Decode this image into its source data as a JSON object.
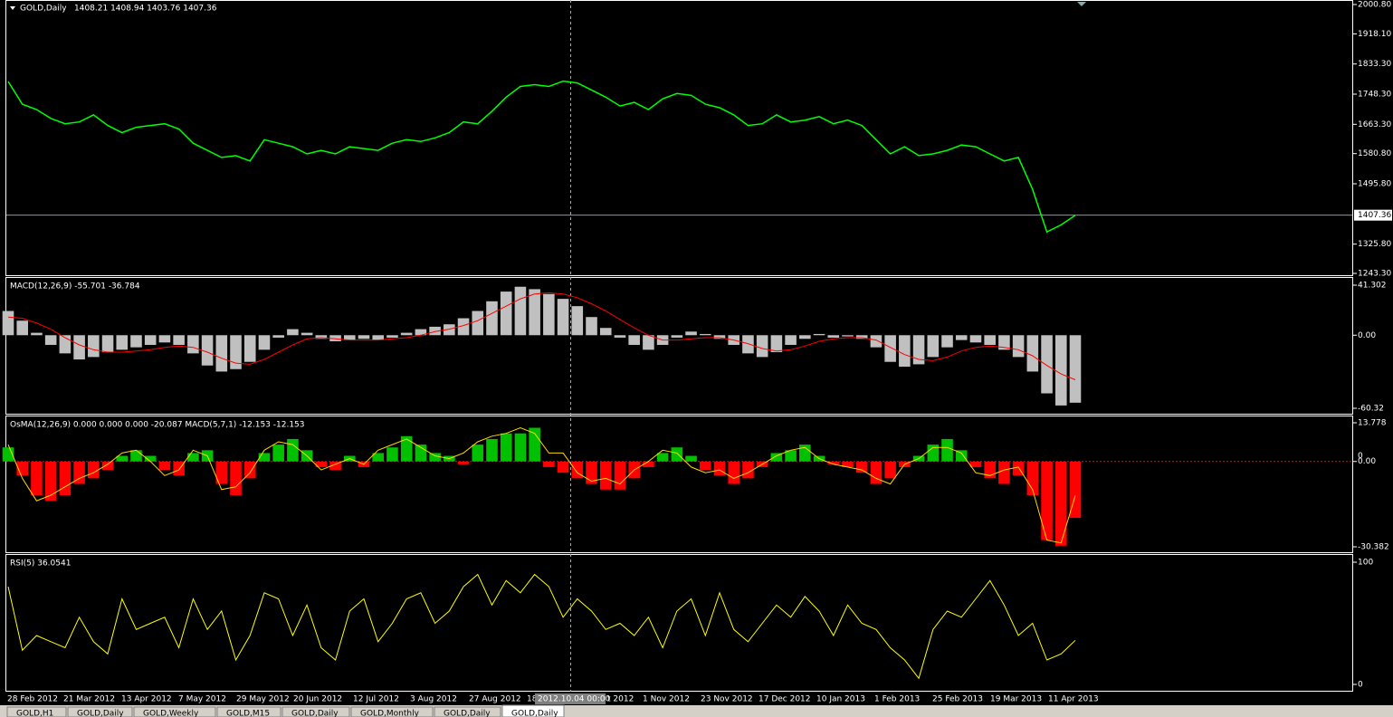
{
  "chart_data": [
    {
      "type": "line",
      "title": "GOLD,Daily",
      "subtitle": "1408.21 1408.94 1403.76 1407.36",
      "color": "#00ff00",
      "ylim": [
        1243.3,
        2000.8
      ],
      "yticks": [
        {
          "value": 2000.8,
          "label": "2000.80"
        },
        {
          "value": 1918.1,
          "label": "1918.10"
        },
        {
          "value": 1833.3,
          "label": "1833.30"
        },
        {
          "value": 1748.3,
          "label": "1748.30"
        },
        {
          "value": 1663.3,
          "label": "1663.30"
        },
        {
          "value": 1580.8,
          "label": "1580.80"
        },
        {
          "value": 1495.8,
          "label": "1495.80"
        },
        {
          "value": 1325.8,
          "label": "1325.80"
        },
        {
          "value": 1243.3,
          "label": "1243.30"
        }
      ],
      "last_value": 1407.36,
      "values": [
        1784,
        1720,
        1705,
        1680,
        1665,
        1670,
        1690,
        1660,
        1640,
        1655,
        1660,
        1665,
        1650,
        1610,
        1590,
        1570,
        1575,
        1560,
        1620,
        1610,
        1600,
        1580,
        1590,
        1580,
        1600,
        1595,
        1590,
        1610,
        1620,
        1615,
        1625,
        1640,
        1670,
        1665,
        1700,
        1740,
        1770,
        1775,
        1770,
        1785,
        1780,
        1760,
        1740,
        1715,
        1725,
        1705,
        1735,
        1750,
        1745,
        1720,
        1710,
        1690,
        1660,
        1665,
        1690,
        1670,
        1675,
        1685,
        1665,
        1675,
        1660,
        1620,
        1580,
        1600,
        1575,
        1580,
        1590,
        1605,
        1600,
        1580,
        1560,
        1570,
        1480,
        1360,
        1380,
        1407.36
      ]
    },
    {
      "type": "bar",
      "title": "MACD(12,26,9) -55.701 -36.784",
      "ylim": [
        -60.32,
        41.302
      ],
      "yticks": [
        41.302,
        {
          "value": 0,
          "label": "0.00"
        },
        -60.32
      ],
      "series": [
        {
          "type": "bar",
          "color": "#c0c0c0",
          "values": [
            20,
            12,
            2,
            -8,
            -15,
            -20,
            -18,
            -14,
            -12,
            -10,
            -8,
            -6,
            -8,
            -15,
            -25,
            -30,
            -28,
            -22,
            -12,
            -2,
            5,
            2,
            -3,
            -5,
            -4,
            -3,
            -4,
            -2,
            2,
            5,
            7,
            9,
            14,
            20,
            28,
            36,
            40,
            38,
            34,
            30,
            24,
            15,
            6,
            -2,
            -8,
            -12,
            -8,
            -2,
            3,
            1,
            -3,
            -8,
            -15,
            -18,
            -14,
            -8,
            -3,
            1,
            -2,
            -1,
            -3,
            -10,
            -22,
            -26,
            -24,
            -18,
            -10,
            -4,
            -6,
            -8,
            -12,
            -18,
            -30,
            -48,
            -58,
            -55.701
          ]
        },
        {
          "type": "line",
          "color": "#ff0000",
          "values": [
            15,
            14,
            10,
            5,
            -2,
            -8,
            -12,
            -14,
            -14,
            -13,
            -12,
            -10,
            -9,
            -10,
            -14,
            -19,
            -23,
            -24,
            -20,
            -14,
            -8,
            -3,
            -2,
            -3,
            -4,
            -4,
            -4,
            -3,
            -2,
            0,
            3,
            5,
            8,
            12,
            18,
            24,
            30,
            34,
            35,
            34,
            31,
            26,
            20,
            13,
            6,
            0,
            -4,
            -4,
            -3,
            -2,
            -2,
            -4,
            -7,
            -11,
            -13,
            -12,
            -9,
            -5,
            -3,
            -2,
            -2,
            -4,
            -10,
            -16,
            -20,
            -21,
            -18,
            -13,
            -10,
            -9,
            -10,
            -12,
            -17,
            -25,
            -32,
            -36.784
          ]
        }
      ]
    },
    {
      "type": "bar",
      "title": "OsMA(12,26,9) 0.000 0.000 0.000 -20.087  MACD(5,7,1) -12.153 -12.153",
      "ylim": [
        -30.382,
        13.778
      ],
      "yticks": [
        13.778,
        {
          "value": 0,
          "label": "0.00"
        },
        -30.382
      ],
      "level": 0,
      "series": [
        {
          "type": "bar",
          "color": "#00c000",
          "negative_color": "#ff0000",
          "values": [
            5,
            -5,
            -12,
            -14,
            -12,
            -8,
            -6,
            -3,
            2,
            4,
            2,
            -3,
            -5,
            3,
            4,
            -8,
            -12,
            -6,
            3,
            6,
            8,
            4,
            -2,
            -3,
            2,
            -2,
            3,
            5,
            9,
            6,
            3,
            2,
            -1,
            6,
            8,
            10,
            10,
            12,
            -2,
            -4,
            -6,
            -8,
            -10,
            -10,
            -6,
            -2,
            3,
            5,
            2,
            -3,
            -5,
            -8,
            -6,
            -2,
            3,
            4,
            6,
            2,
            -1,
            -2,
            -4,
            -8,
            -6,
            -2,
            2,
            6,
            8,
            4,
            -2,
            -6,
            -8,
            -5,
            -12,
            -28,
            -30,
            -20.087
          ]
        },
        {
          "type": "line",
          "color": "#ffd700",
          "values": [
            6,
            -6,
            -14,
            -12,
            -9,
            -6,
            -4,
            -1,
            3,
            4,
            0,
            -5,
            -3,
            4,
            2,
            -10,
            -9,
            -4,
            4,
            7,
            6,
            2,
            -3,
            -1,
            1,
            -1,
            4,
            6,
            8,
            5,
            2,
            1,
            3,
            7,
            9,
            10,
            12,
            10,
            3,
            3,
            -4,
            -7,
            -6,
            -8,
            -3,
            0,
            4,
            3,
            -2,
            -4,
            -3,
            -6,
            -4,
            -1,
            2,
            4,
            5,
            1,
            -1,
            -2,
            -3,
            -6,
            -8,
            -1,
            1,
            5,
            5,
            3,
            -4,
            -5,
            -3,
            -2,
            -10,
            -28,
            -29,
            -12.153
          ]
        }
      ]
    },
    {
      "type": "line",
      "title": "RSI(5) 36.0541",
      "color": "#ffff00",
      "ylim": [
        0,
        100
      ],
      "yticks": [
        100,
        0
      ],
      "values": [
        80,
        28,
        40,
        35,
        30,
        55,
        35,
        25,
        70,
        45,
        50,
        55,
        30,
        70,
        45,
        60,
        20,
        40,
        75,
        70,
        40,
        65,
        30,
        20,
        60,
        70,
        35,
        50,
        70,
        75,
        50,
        60,
        80,
        90,
        65,
        85,
        75,
        90,
        80,
        55,
        70,
        60,
        45,
        50,
        40,
        55,
        30,
        60,
        70,
        40,
        75,
        45,
        35,
        50,
        65,
        55,
        72,
        60,
        40,
        65,
        50,
        45,
        30,
        20,
        5,
        45,
        60,
        55,
        70,
        85,
        65,
        40,
        50,
        20,
        25,
        36.0541
      ]
    }
  ],
  "x_axis": {
    "labels": [
      "28 Feb 2012",
      "21 Mar 2012",
      "13 Apr 2012",
      "7 May 2012",
      "29 May 2012",
      "20 Jun 2012",
      "12 Jul 2012",
      "3 Aug 2012",
      "27 Aug 2012",
      "18",
      "t 2012",
      "1 Nov 2012",
      "23 Nov 2012",
      "17 Dec 2012",
      "10 Jan 2013",
      "1 Feb 2013",
      "25 Feb 2013",
      "19 Mar 2013",
      "11 Apr 2013"
    ],
    "crosshair_label": "2012.10.04 00:00"
  },
  "tabs": [
    "GOLD,H1",
    "GOLD,Daily",
    "GOLD,Weekly",
    "GOLD,M15",
    "GOLD,Daily",
    "GOLD,Monthly",
    "GOLD,Daily",
    "GOLD,Daily"
  ]
}
